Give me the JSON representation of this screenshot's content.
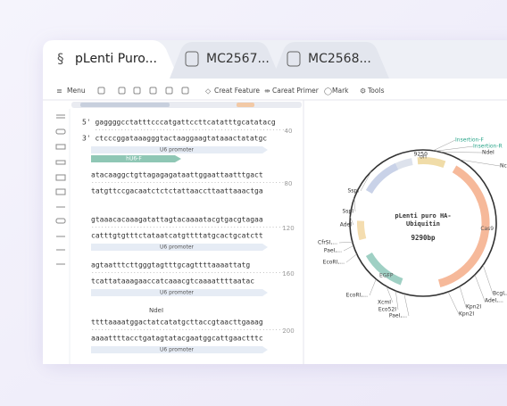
{
  "tabs": [
    "pLenti Puro...",
    "MC2567...",
    "MC2568..."
  ],
  "toolbar": [
    "Menu",
    "Creat Feature",
    "Careat Primer",
    "Mark",
    "Tools"
  ],
  "sequence": {
    "blocks": [
      {
        "top": "5' gaggggcctatttcccatgattccttcatatttgcatatacg",
        "bottom": "3' ctcccggataaagggtactaaggaagtataaactatatgc",
        "position": "40",
        "features": [
          "U6 promoter"
        ],
        "primer": "hU6-F"
      },
      {
        "top": "atacaaggctgttagagagataattggaattaatttgact",
        "bottom": "tatgttccgacaatctctctattaaccttaattaaactga",
        "position": "80"
      },
      {
        "top": "gtaaacacaaagatattagtacaaaatacgtgacgtagaa",
        "bottom": "catttgtgtttctataatcatgttttatgcactgcatctt",
        "position": "120",
        "features": [
          "U6 promoter"
        ]
      },
      {
        "top": "agtaatttcttgggtagtttgcagttttaaaattatg",
        "bottom": "tcattataaagaaccatcaaacgtcaaaattttaatac",
        "position": "160",
        "features": [
          "U6 promoter"
        ]
      },
      {
        "enzyme": "NdeI",
        "top": "ttttaaaatggactatcatatgcttaccgtaacttgaaag",
        "bottom": "aaaattttacctgatagtatacgaatggcattgaactttc",
        "position": "200",
        "features": [
          "U6 promoter"
        ]
      }
    ]
  },
  "map": {
    "name": [
      "pLenti puro HA-",
      "Ubiquitin"
    ],
    "size": "9290bp",
    "tick": "9250",
    "features": [
      "ori",
      "Cas9",
      "EGFP"
    ],
    "sites": [
      "Insertion-F",
      "Insertion-R",
      "NdeI",
      "Nco",
      "SspI",
      "SspI",
      "AdeI",
      "CfrSI,...",
      "PaeI,...",
      "EcoRI,...",
      "EcoRI,...",
      "XcmI",
      "Eco52I",
      "PaeI,...",
      "Kpn2I",
      "Kpn2I",
      "BcgI,...",
      "AdeI,..."
    ]
  }
}
